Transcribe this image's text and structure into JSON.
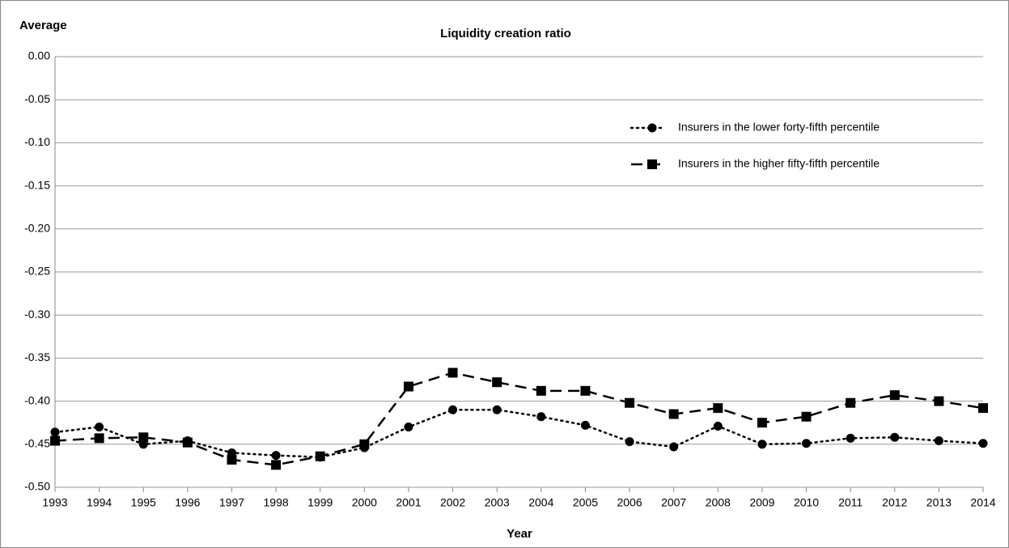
{
  "chart_data": {
    "type": "line",
    "title": "Liquidity creation ratio",
    "y_label": "Average",
    "x_label": "Year",
    "x": [
      1993,
      1994,
      1995,
      1996,
      1997,
      1998,
      1999,
      2000,
      2001,
      2002,
      2003,
      2004,
      2005,
      2006,
      2007,
      2008,
      2009,
      2010,
      2011,
      2012,
      2013,
      2014
    ],
    "xlim": [
      1993,
      2014
    ],
    "ylim": [
      -0.5,
      0
    ],
    "yticks": [
      {
        "value": 0,
        "label": "0.00"
      },
      {
        "value": -0.05,
        "label": "-0.05"
      },
      {
        "value": -0.1,
        "label": "-0.10"
      },
      {
        "value": -0.15,
        "label": "-0.15"
      },
      {
        "value": -0.2,
        "label": "-0.20"
      },
      {
        "value": -0.25,
        "label": "-0.25"
      },
      {
        "value": -0.3,
        "label": "-0.30"
      },
      {
        "value": -0.35,
        "label": "-0.35"
      },
      {
        "value": -0.4,
        "label": "-0.40"
      },
      {
        "value": -0.45,
        "label": "-0.45"
      },
      {
        "value": -0.5,
        "label": "-0.50"
      }
    ],
    "grid": true,
    "legend": "upper right",
    "series": [
      {
        "name": "Insurers in the lower forty-fifth percentile",
        "color": "#000000",
        "line_style": "dotted",
        "marker": "circle",
        "values": [
          -0.436,
          -0.43,
          -0.45,
          -0.446,
          -0.46,
          -0.463,
          -0.465,
          -0.454,
          -0.43,
          -0.41,
          -0.41,
          -0.418,
          -0.428,
          -0.447,
          -0.453,
          -0.429,
          -0.45,
          -0.449,
          -0.443,
          -0.442,
          -0.446,
          -0.449
        ]
      },
      {
        "name": "Insurers in the higher fifty-fifth percentile",
        "color": "#000000",
        "line_style": "dashed",
        "marker": "square",
        "values": [
          -0.446,
          -0.443,
          -0.442,
          -0.448,
          -0.468,
          -0.474,
          -0.464,
          -0.45,
          -0.383,
          -0.367,
          -0.378,
          -0.388,
          -0.388,
          -0.402,
          -0.415,
          -0.408,
          -0.425,
          -0.418,
          -0.402,
          -0.393,
          -0.4,
          -0.408
        ]
      }
    ]
  }
}
